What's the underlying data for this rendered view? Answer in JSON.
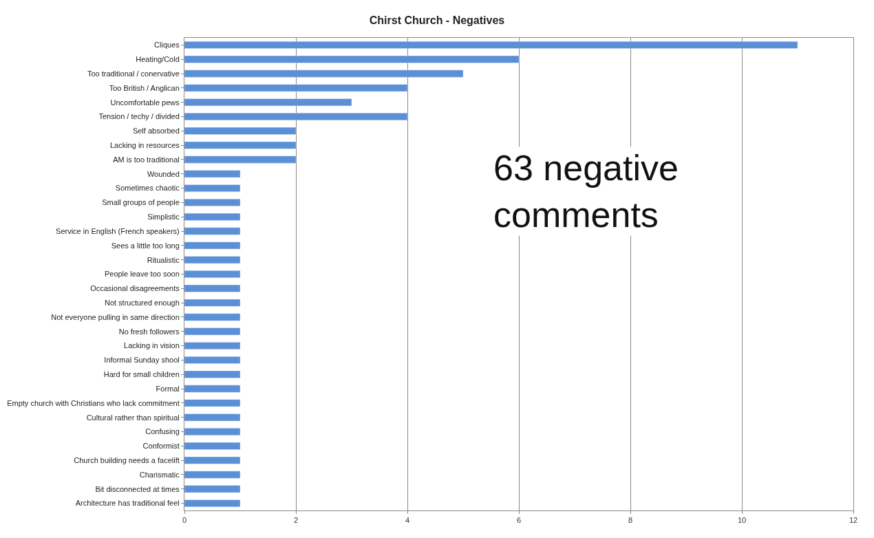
{
  "chart_data": {
    "type": "bar",
    "orientation": "horizontal",
    "title": "Chirst Church - Negatives",
    "categories": [
      "Cliques",
      "Heating/Cold",
      "Too traditional / conervative",
      "Too British / Anglican",
      "Uncomfortable pews",
      "Tension / techy / divided",
      "Self absorbed",
      "Lacking in resources",
      "AM is too traditional",
      "Wounded",
      "Sometimes chaotic",
      "Small groups of people",
      "Simplistic",
      "Service in English (French speakers)",
      "Sees a little too long",
      "Ritualistic",
      "People leave too soon",
      "Occasional disagreements",
      "Not structured enough",
      "Not everyone pulling in same direction",
      "No fresh followers",
      "Lacking in vision",
      "Informal Sunday shool",
      "Hard for small children",
      "Formal",
      "Empty church with Christians who lack commitment",
      "Cultural rather than spiritual",
      "Confusing",
      "Conformist",
      "Church building needs a facelift",
      "Charismatic",
      "Bit disconnected at times",
      "Architecture has traditional feel"
    ],
    "values": [
      11,
      6,
      5,
      4,
      3,
      4,
      2,
      2,
      2,
      1,
      1,
      1,
      1,
      1,
      1,
      1,
      1,
      1,
      1,
      1,
      1,
      1,
      1,
      1,
      1,
      1,
      1,
      1,
      1,
      1,
      1,
      1,
      1
    ],
    "color": "#5b8fd6",
    "xlim": [
      0,
      12
    ],
    "xticks": [
      0,
      2,
      4,
      6,
      8,
      10,
      12
    ],
    "grid": "x",
    "annotations": [
      "63 negative comments"
    ]
  }
}
